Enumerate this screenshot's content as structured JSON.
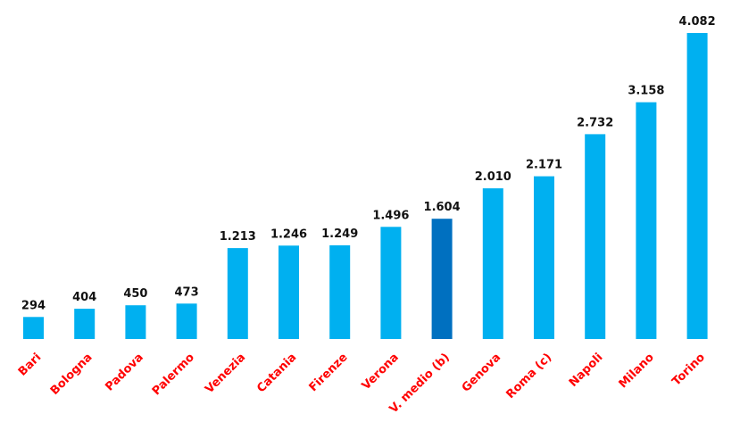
{
  "chart_data": {
    "type": "bar",
    "categories": [
      "Bari",
      "Bologna",
      "Padova",
      "Palermo",
      "Venezia",
      "Catania",
      "Firenze",
      "Verona",
      "V. medio (b)",
      "Genova",
      "Roma (c)",
      "Napoli",
      "Milano",
      "Torino"
    ],
    "values": [
      294,
      404,
      450,
      473,
      1213,
      1246,
      1249,
      1496,
      1604,
      2010,
      2171,
      2732,
      3158,
      4082
    ],
    "value_labels": [
      "294",
      "404",
      "450",
      "473",
      "1.213",
      "1.246",
      "1.249",
      "1.496",
      "1.604",
      "2.010",
      "2.171",
      "2.732",
      "3.158",
      "4.082"
    ],
    "highlight_index": 8,
    "ylim": [
      0,
      4082
    ],
    "grid": false,
    "axis_line": false,
    "colors": {
      "bar": "#00b0f0",
      "highlight": "#0070c0",
      "category_label": "#ff0000",
      "value_label": "#111111"
    }
  }
}
